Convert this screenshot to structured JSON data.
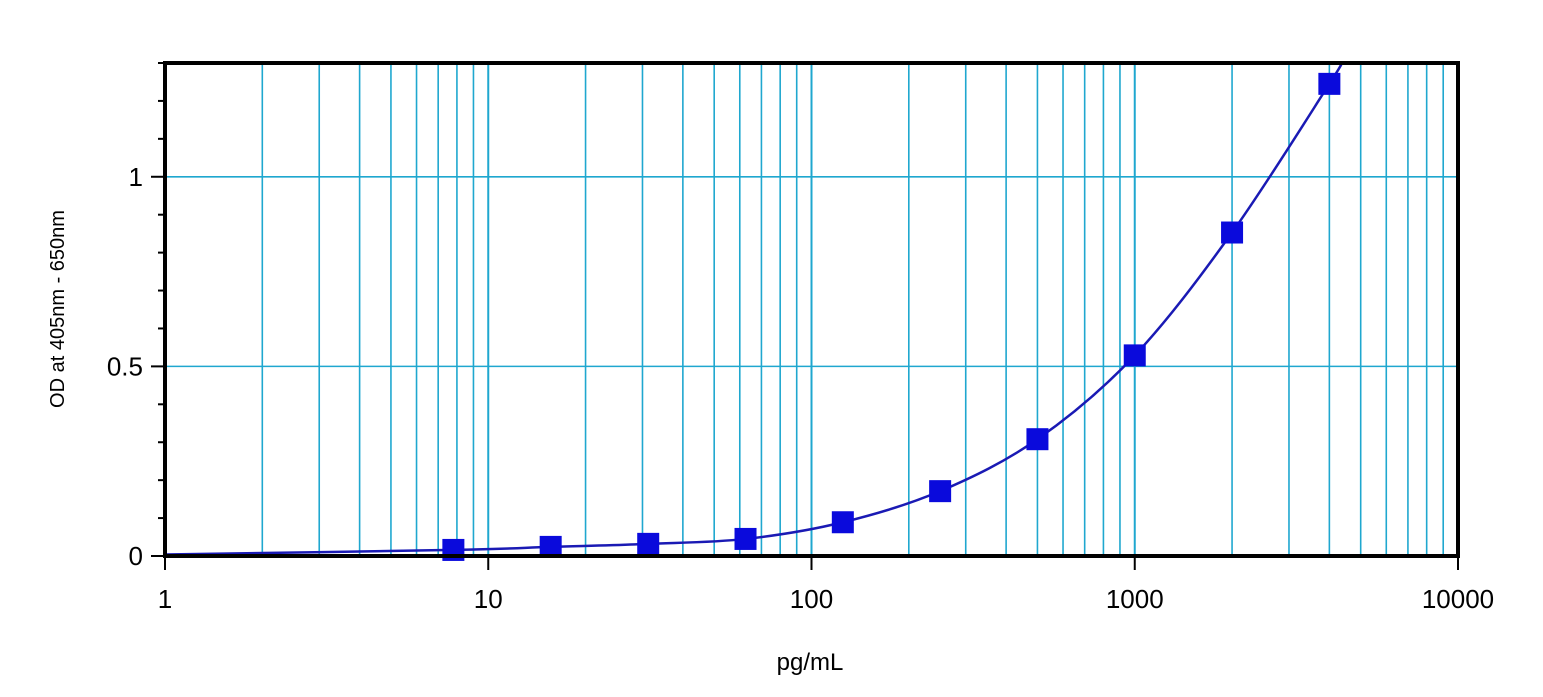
{
  "chart_data": {
    "type": "scatter",
    "title": "",
    "xlabel": "pg/mL",
    "ylabel": "OD at 405nm - 650nm",
    "x_scale": "log",
    "xlim": [
      1,
      10000
    ],
    "ylim": [
      0,
      1.3
    ],
    "x_ticks": [
      "1",
      "10",
      "100",
      "1000",
      "10000"
    ],
    "x_tick_values": [
      1,
      10,
      100,
      1000,
      10000
    ],
    "y_ticks": [
      "0",
      "0.5",
      "1"
    ],
    "y_tick_values": [
      0,
      0.5,
      1
    ],
    "y_minor_step": 0.1,
    "grid": true,
    "grid_color": "#1fa7cf",
    "series": [
      {
        "marker": "square",
        "color": "#0a0adc",
        "line_color": "#1a1ab4",
        "fit_curve": true,
        "x": [
          7.8,
          15.6,
          31.25,
          62.5,
          125,
          250,
          500,
          1000,
          2000,
          4000
        ],
        "y": [
          0.016,
          0.024,
          0.032,
          0.045,
          0.089,
          0.171,
          0.308,
          0.529,
          0.853,
          1.245
        ]
      }
    ]
  }
}
